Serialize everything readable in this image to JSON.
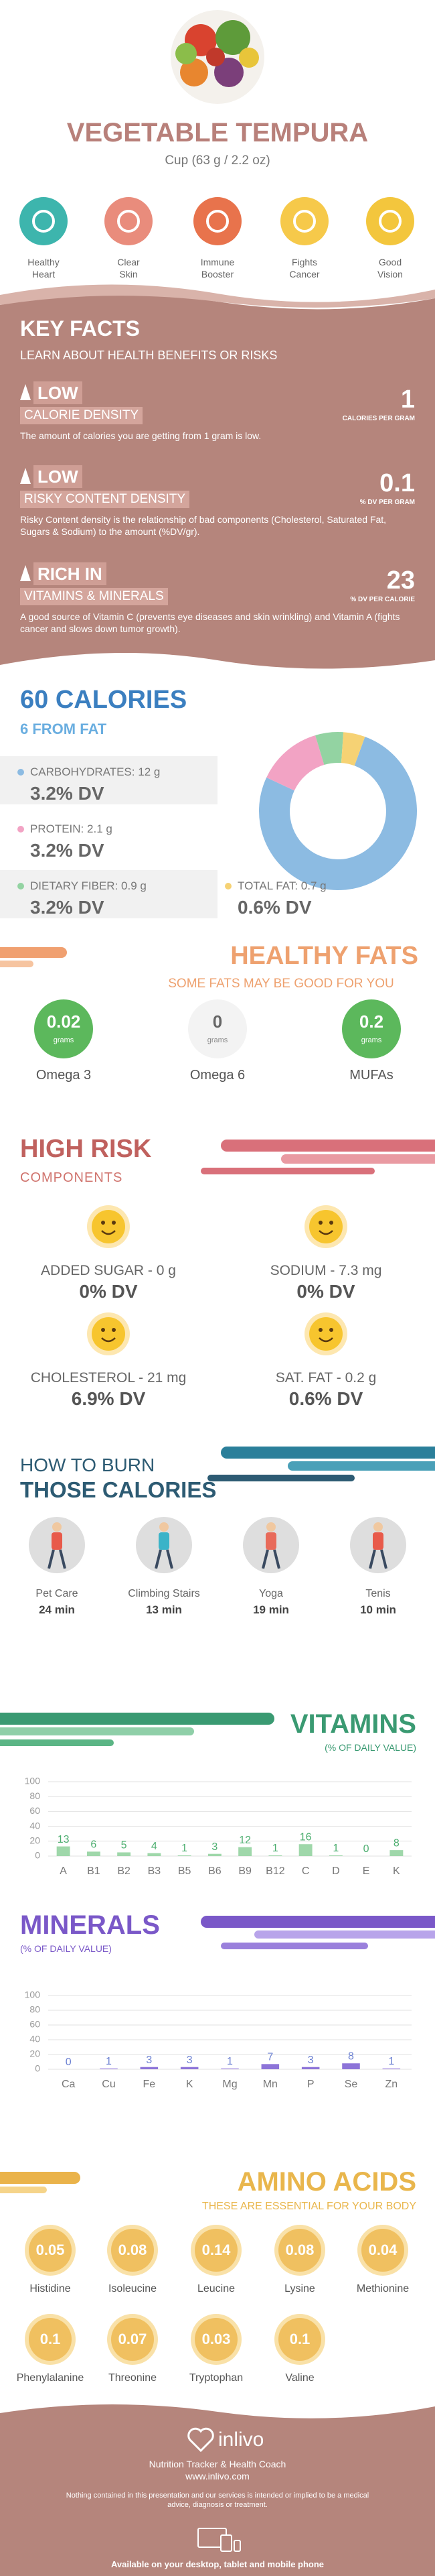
{
  "header": {
    "title": "VEGETABLE TEMPURA",
    "serving": "Cup (63 g / 2.2 oz)"
  },
  "benefits": [
    "Healthy Heart",
    "Clear Skin",
    "Immune Booster",
    "Fights Cancer",
    "Good Vision"
  ],
  "key_facts": {
    "title": "KEY FACTS",
    "subtitle": "LEARN ABOUT HEALTH BENEFITS OR RISKS",
    "items": [
      {
        "level": "LOW",
        "topic": "CALORIE DENSITY",
        "value": "1",
        "unit": "CALORIES PER GRAM",
        "text": "The amount of calories you are getting from 1 gram is low."
      },
      {
        "level": "LOW",
        "topic": "RISKY CONTENT DENSITY",
        "value": "0.1",
        "unit": "% DV PER GRAM",
        "text": "Risky Content density is the relationship of bad components (Cholesterol, Saturated Fat, Sugars & Sodium) to the amount (%DV/gr)."
      },
      {
        "level": "RICH IN",
        "topic": "VITAMINS & MINERALS",
        "value": "23",
        "unit": "% DV PER CALORIE",
        "text": "A good source of Vitamin C (prevents eye diseases and skin wrinkling) and Vitamin A (fights cancer and slows down tumor growth)."
      }
    ]
  },
  "calories": {
    "title": "60 CALORIES",
    "subtitle": "6 FROM FAT",
    "nutrients": [
      {
        "name": "CARBOHYDRATES:",
        "grams": 12,
        "grams_label": "12 g",
        "dv": "3.2% DV",
        "color": "#8cbbe2"
      },
      {
        "name": "PROTEIN:",
        "grams": 2.1,
        "grams_label": "2.1 g",
        "dv": "3.2% DV",
        "color": "#f2a3c4"
      },
      {
        "name": "DIETARY FIBER:",
        "grams": 0.9,
        "grams_label": "0.9 g",
        "dv": "3.2% DV",
        "color": "#93d3a2"
      },
      {
        "name": "TOTAL FAT:",
        "grams": 0.7,
        "grams_label": "0.7 g",
        "dv": "0.6% DV",
        "color": "#f6d274"
      }
    ]
  },
  "healthy_fats": {
    "title": "HEALTHY FATS",
    "subtitle": "SOME FATS MAY BE GOOD FOR YOU",
    "unit": "grams",
    "items": [
      {
        "name": "Omega 3",
        "value": 0.02
      },
      {
        "name": "Omega 6",
        "value": 0
      },
      {
        "name": "MUFAs",
        "value": 0.2
      }
    ]
  },
  "high_risk": {
    "title": "HIGH RISK",
    "subtitle": "COMPONENTS",
    "items": [
      {
        "label": "ADDED SUGAR - 0 g",
        "dv": "0% DV"
      },
      {
        "label": "SODIUM - 7.3 mg",
        "dv": "0% DV"
      },
      {
        "label": "CHOLESTEROL - 21 mg",
        "dv": "6.9% DV"
      },
      {
        "label": "SAT. FAT - 0.2 g",
        "dv": "0.6% DV"
      }
    ]
  },
  "burn": {
    "title_1": "HOW TO BURN",
    "title_2": "THOSE CALORIES",
    "activities": [
      {
        "name": "Pet Care",
        "time": "24 min"
      },
      {
        "name": "Climbing Stairs",
        "time": "13 min"
      },
      {
        "name": "Yoga",
        "time": "19 min"
      },
      {
        "name": "Tenis",
        "time": "10 min"
      }
    ]
  },
  "chart_data": [
    {
      "type": "bar",
      "title": "VITAMINS",
      "subtitle": "(% OF DAILY VALUE)",
      "categories": [
        "A",
        "B1",
        "B2",
        "B3",
        "B5",
        "B6",
        "B9",
        "B12",
        "C",
        "D",
        "E",
        "K"
      ],
      "values": [
        13,
        6,
        5,
        4,
        1,
        3,
        12,
        1,
        16,
        1,
        0,
        8
      ],
      "color": "#9fd7aa",
      "label_color": "#4cae6f",
      "ylim": [
        0,
        100
      ],
      "yticks": [
        0,
        20,
        40,
        60,
        80,
        100
      ],
      "grid": true
    },
    {
      "type": "bar",
      "title": "MINERALS",
      "subtitle": "(% OF DAILY VALUE)",
      "categories": [
        "Ca",
        "Cu",
        "Fe",
        "K",
        "Mg",
        "Mn",
        "P",
        "Se",
        "Zn"
      ],
      "values": [
        0,
        1,
        3,
        3,
        1,
        7,
        3,
        8,
        1
      ],
      "color": "#8d74d8",
      "label_color": "#6b80d2",
      "ylim": [
        0,
        100
      ],
      "yticks": [
        0,
        20,
        40,
        60,
        80,
        100
      ],
      "grid": true
    }
  ],
  "amino_acids": {
    "title": "AMINO ACIDS",
    "subtitle": "THESE ARE ESSENTIAL FOR YOUR BODY",
    "items": [
      {
        "name": "Histidine",
        "value": 0.05
      },
      {
        "name": "Isoleucine",
        "value": 0.08
      },
      {
        "name": "Leucine",
        "value": 0.14
      },
      {
        "name": "Lysine",
        "value": 0.08
      },
      {
        "name": "Methionine",
        "value": 0.04
      },
      {
        "name": "Phenylalanine",
        "value": 0.1
      },
      {
        "name": "Threonine",
        "value": 0.07
      },
      {
        "name": "Tryptophan",
        "value": 0.03
      },
      {
        "name": "Valine",
        "value": 0.1
      }
    ]
  },
  "footer": {
    "brand": "inlivo",
    "tagline": "Nutrition Tracker & Health Coach",
    "url": "www.inlivo.com",
    "disclaimer": "Nothing contained in this presentation and our services is intended or implied to be a medical advice, diagnosis or treatment.",
    "availability": "Available on your desktop, tablet and mobile phone"
  }
}
